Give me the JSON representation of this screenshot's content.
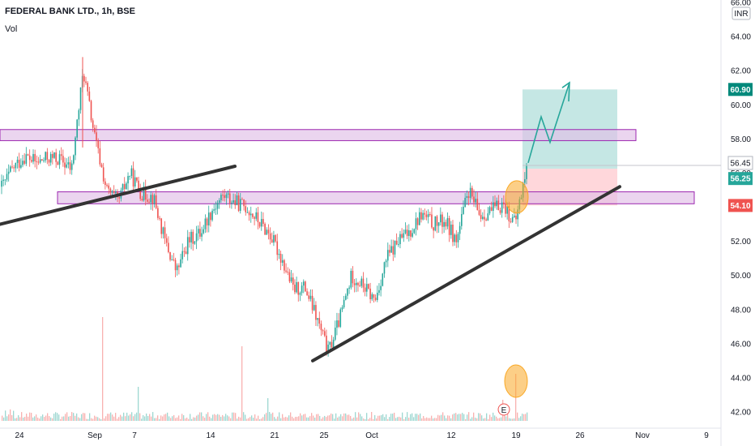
{
  "header": {
    "symbol": "FEDERAL BANK LTD., 1h, BSE",
    "volume_label": "Vol"
  },
  "currency_badge": "INR",
  "colors": {
    "up": "#26a69a",
    "down": "#ef5350",
    "zone_fill": "#e1bee7",
    "zone_stroke": "#9c27b0",
    "target_fill": "#b2dfdb",
    "stop_fill": "#ffcdd2",
    "trendline": "#333333",
    "arrow": "#26a69a",
    "highlight": "#f9a825",
    "price_target_badge": "#00897b",
    "price_current_badge": "#26a69a",
    "price_stop_badge": "#ef5350",
    "price_last_badge": "#787b86"
  },
  "chart_data": {
    "type": "candlestick",
    "title": "FEDERAL BANK LTD., 1h, BSE",
    "y_axis_label": "INR",
    "y_range": [
      42.0,
      66.0
    ],
    "y_ticks": [
      "42.00",
      "44.00",
      "46.00",
      "48.00",
      "50.00",
      "52.00",
      "54.00",
      "56.00",
      "58.00",
      "60.00",
      "62.00",
      "64.00",
      "66.00"
    ],
    "x_ticks": [
      "24",
      "Sep",
      "7",
      "14",
      "21",
      "25",
      "Oct",
      "12",
      "19",
      "26",
      "Nov",
      "9"
    ],
    "price_labels": [
      {
        "value": 60.9,
        "text": "60.90",
        "role": "target"
      },
      {
        "value": 56.45,
        "text": "56.45",
        "role": "last"
      },
      {
        "value": 56.25,
        "text": "56.25",
        "role": "current"
      },
      {
        "value": 54.1,
        "text": "54.10",
        "role": "stop"
      }
    ],
    "price_path": [
      55.2,
      56.3,
      57.0,
      56.6,
      56.9,
      56.8,
      56.2,
      62.0,
      58.0,
      55.0,
      54.3,
      56.0,
      54.8,
      54.6,
      52.0,
      50.2,
      52.0,
      52.5,
      53.8,
      54.7,
      54.3,
      54.0,
      53.2,
      52.4,
      51.0,
      49.2,
      49.3,
      47.5,
      45.5,
      47.5,
      50.0,
      49.4,
      48.5,
      51.0,
      52.0,
      52.6,
      53.6,
      53.0,
      53.2,
      52.0,
      55.0,
      53.5,
      53.8,
      54.2,
      53.0,
      56.25
    ],
    "zones": [
      {
        "type": "resistance",
        "top": 58.55,
        "bottom": 57.9
      },
      {
        "type": "support",
        "top": 54.9,
        "bottom": 54.2
      }
    ],
    "position": {
      "entry": 56.25,
      "target": 60.9,
      "stop": 54.1
    },
    "trendlines": [
      {
        "name": "upper-support",
        "from": 53.0,
        "to": 56.4
      },
      {
        "name": "rising-support",
        "from": 45.0,
        "to": 55.2
      }
    ],
    "volume_event_label": "E",
    "grid": false,
    "legend": "none"
  }
}
